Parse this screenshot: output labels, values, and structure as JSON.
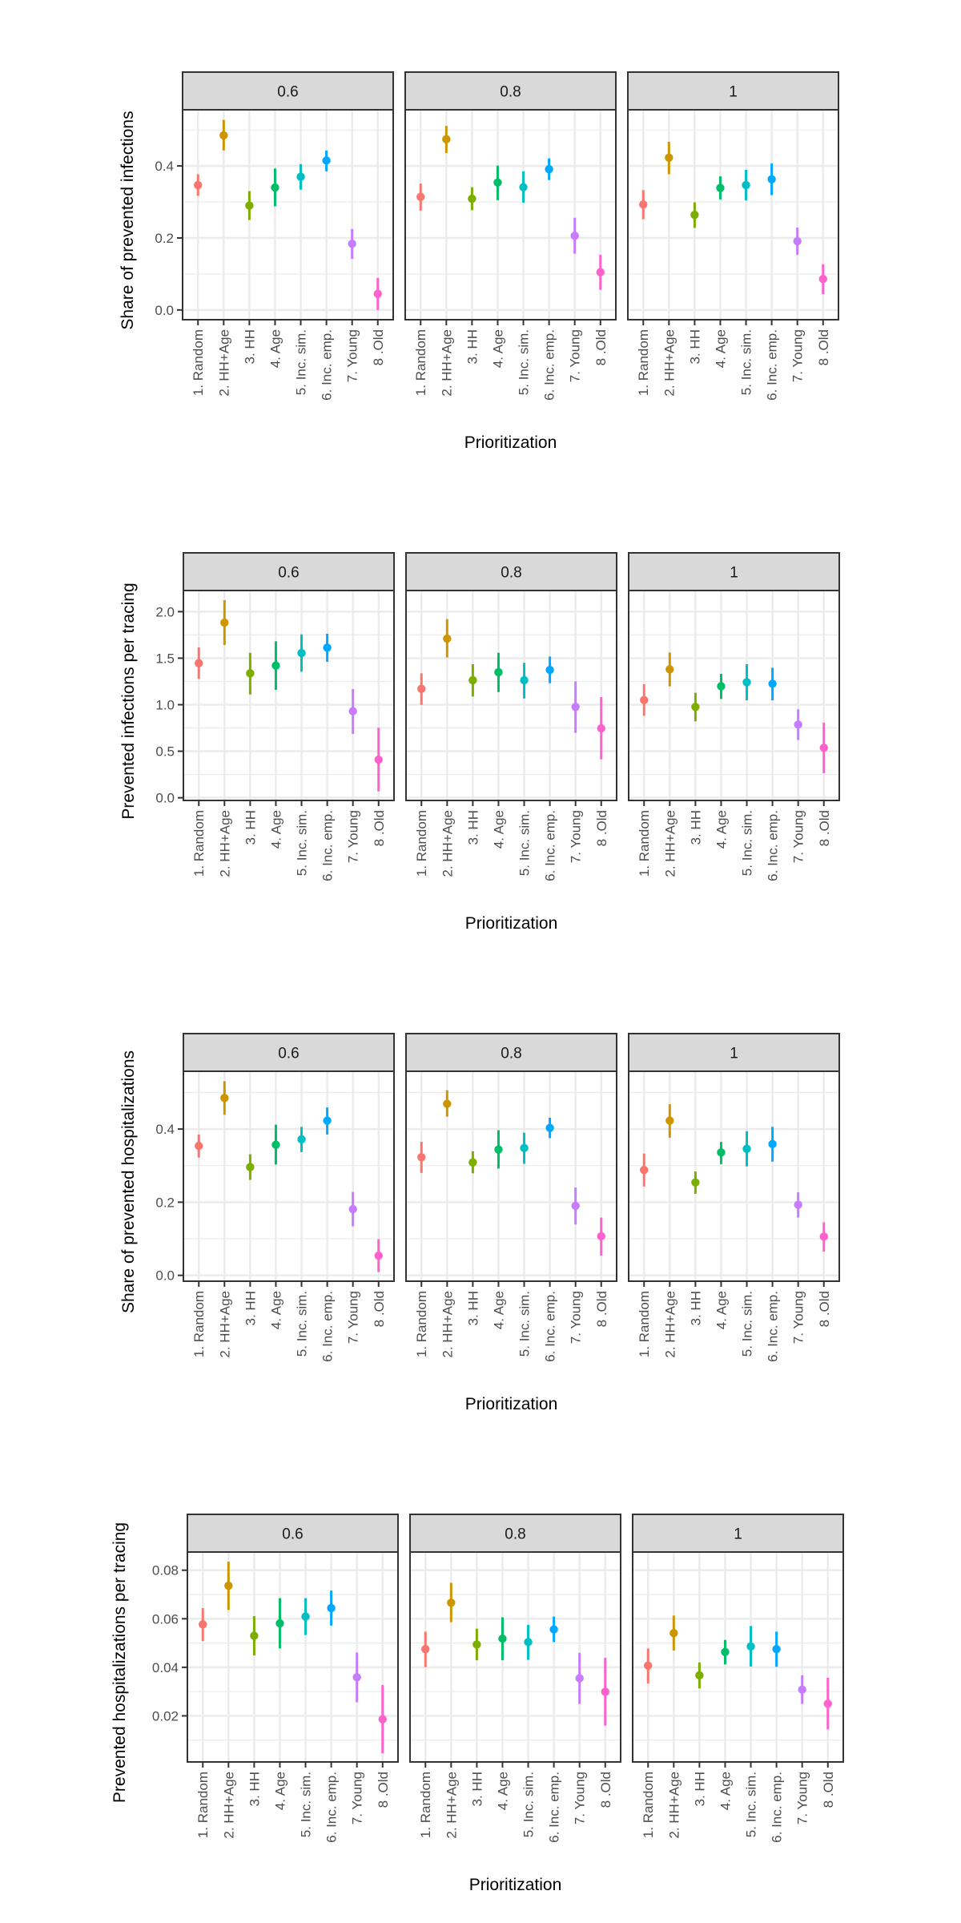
{
  "chart_data": [
    {
      "type": "scatter",
      "subtype": "point-range (faceted)",
      "ylabel": "Share of prevented infections",
      "xlabel": "Prioritization",
      "facets": [
        "0.6",
        "0.8",
        "1"
      ],
      "categories": [
        "1. Random",
        "2. HH+Age",
        "3. HH",
        "4. Age",
        "5. Inc. sim.",
        "6. Inc. emp.",
        "7. Young",
        "8 .Old"
      ],
      "yticks": [
        0.0,
        0.2,
        0.4
      ],
      "ytick_labels": [
        "0.0",
        "0.2",
        "0.4"
      ],
      "ylim": [
        -0.027,
        0.556
      ],
      "grid": true,
      "series": [
        {
          "facet": "0.6",
          "values": [
            0.347,
            0.485,
            0.29,
            0.34,
            0.37,
            0.415,
            0.184,
            0.045
          ],
          "lower": [
            0.317,
            0.443,
            0.25,
            0.288,
            0.334,
            0.385,
            0.142,
            0.0
          ],
          "upper": [
            0.377,
            0.528,
            0.33,
            0.393,
            0.405,
            0.443,
            0.225,
            0.089
          ]
        },
        {
          "facet": "0.8",
          "values": [
            0.314,
            0.474,
            0.309,
            0.354,
            0.341,
            0.391,
            0.206,
            0.105
          ],
          "lower": [
            0.276,
            0.436,
            0.277,
            0.305,
            0.298,
            0.361,
            0.156,
            0.056
          ],
          "upper": [
            0.351,
            0.511,
            0.341,
            0.401,
            0.385,
            0.421,
            0.256,
            0.153
          ]
        },
        {
          "facet": "1",
          "values": [
            0.293,
            0.423,
            0.264,
            0.339,
            0.347,
            0.363,
            0.191,
            0.086
          ],
          "lower": [
            0.252,
            0.377,
            0.228,
            0.307,
            0.304,
            0.319,
            0.153,
            0.044
          ],
          "upper": [
            0.333,
            0.467,
            0.299,
            0.371,
            0.389,
            0.407,
            0.229,
            0.127
          ]
        }
      ]
    },
    {
      "type": "scatter",
      "subtype": "point-range (faceted)",
      "ylabel": "Prevented infections per tracing",
      "xlabel": "Prioritization",
      "facets": [
        "0.6",
        "0.8",
        "1"
      ],
      "categories": [
        "1. Random",
        "2. HH+Age",
        "3. HH",
        "4. Age",
        "5. Inc. sim.",
        "6. Inc. emp.",
        "7. Young",
        "8 .Old"
      ],
      "yticks": [
        0.0,
        0.5,
        1.0,
        1.5,
        2.0
      ],
      "ytick_labels": [
        "0.0",
        "0.5",
        "1.0",
        "1.5",
        "2.0"
      ],
      "ylim": [
        -0.029,
        2.227
      ],
      "grid": true,
      "series": [
        {
          "facet": "0.6",
          "values": [
            1.446,
            1.882,
            1.337,
            1.42,
            1.555,
            1.613,
            0.93,
            0.41
          ],
          "lower": [
            1.277,
            1.641,
            1.11,
            1.159,
            1.354,
            1.461,
            0.686,
            0.069
          ],
          "upper": [
            1.615,
            2.123,
            1.558,
            1.681,
            1.756,
            1.762,
            1.168,
            0.752
          ]
        },
        {
          "facet": "0.8",
          "values": [
            1.171,
            1.71,
            1.263,
            1.349,
            1.263,
            1.374,
            0.976,
            0.746
          ],
          "lower": [
            0.998,
            1.507,
            1.088,
            1.136,
            1.067,
            1.231,
            0.697,
            0.413
          ],
          "upper": [
            1.337,
            1.92,
            1.435,
            1.558,
            1.45,
            1.518,
            1.251,
            1.082
          ]
        },
        {
          "facet": "1",
          "values": [
            1.05,
            1.38,
            0.976,
            1.199,
            1.242,
            1.225,
            0.786,
            0.537
          ],
          "lower": [
            0.881,
            1.197,
            0.821,
            1.062,
            1.047,
            1.047,
            0.62,
            0.264
          ],
          "upper": [
            1.22,
            1.561,
            1.128,
            1.331,
            1.435,
            1.397,
            0.95,
            0.806
          ]
        }
      ]
    },
    {
      "type": "scatter",
      "subtype": "point-range (faceted)",
      "ylabel": "Share of prevented hospitalizations",
      "xlabel": "Prioritization",
      "facets": [
        "0.6",
        "0.8",
        "1"
      ],
      "categories": [
        "1. Random",
        "2. HH+Age",
        "3. HH",
        "4. Age",
        "5. Inc. sim.",
        "6. Inc. emp.",
        "7. Young",
        "8 .Old"
      ],
      "yticks": [
        0.0,
        0.2,
        0.4
      ],
      "ytick_labels": [
        "0.0",
        "0.2",
        "0.4"
      ],
      "ylim": [
        -0.016,
        0.558
      ],
      "grid": true,
      "series": [
        {
          "facet": "0.6",
          "values": [
            0.354,
            0.485,
            0.296,
            0.357,
            0.372,
            0.423,
            0.181,
            0.054
          ],
          "lower": [
            0.322,
            0.439,
            0.261,
            0.303,
            0.337,
            0.385,
            0.134,
            0.009
          ],
          "upper": [
            0.385,
            0.531,
            0.331,
            0.412,
            0.406,
            0.459,
            0.228,
            0.099
          ]
        },
        {
          "facet": "0.8",
          "values": [
            0.323,
            0.469,
            0.309,
            0.344,
            0.348,
            0.403,
            0.19,
            0.107
          ],
          "lower": [
            0.28,
            0.434,
            0.279,
            0.292,
            0.305,
            0.375,
            0.139,
            0.054
          ],
          "upper": [
            0.365,
            0.506,
            0.339,
            0.397,
            0.39,
            0.431,
            0.24,
            0.158
          ]
        },
        {
          "facet": "1",
          "values": [
            0.288,
            0.423,
            0.254,
            0.336,
            0.346,
            0.359,
            0.193,
            0.106
          ],
          "lower": [
            0.243,
            0.376,
            0.223,
            0.304,
            0.298,
            0.311,
            0.158,
            0.065
          ],
          "upper": [
            0.333,
            0.468,
            0.284,
            0.365,
            0.394,
            0.406,
            0.227,
            0.145
          ]
        }
      ]
    },
    {
      "type": "scatter",
      "subtype": "point-range (faceted)",
      "ylabel": "Prevented hospitalizations per tracing",
      "xlabel": "Prioritization",
      "facets": [
        "0.6",
        "0.8",
        "1"
      ],
      "categories": [
        "1. Random",
        "2. HH+Age",
        "3. HH",
        "4. Age",
        "5. Inc. sim.",
        "6. Inc. emp.",
        "7. Young",
        "8 .Old"
      ],
      "yticks": [
        0.02,
        0.04,
        0.06,
        0.08
      ],
      "ytick_labels": [
        "0.02",
        "0.04",
        "0.06",
        "0.08"
      ],
      "ylim": [
        0.001,
        0.0875
      ],
      "grid": true,
      "series": [
        {
          "facet": "0.6",
          "values": [
            0.0577,
            0.0736,
            0.053,
            0.0581,
            0.0609,
            0.0644,
            0.0359,
            0.0186
          ],
          "lower": [
            0.0508,
            0.0636,
            0.0449,
            0.0478,
            0.0533,
            0.0572,
            0.0256,
            0.0045
          ],
          "upper": [
            0.0644,
            0.0835,
            0.0611,
            0.0685,
            0.0685,
            0.0716,
            0.0461,
            0.0327
          ]
        },
        {
          "facet": "0.8",
          "values": [
            0.0475,
            0.0666,
            0.0494,
            0.0518,
            0.0504,
            0.0556,
            0.0355,
            0.0299
          ],
          "lower": [
            0.0401,
            0.0586,
            0.0429,
            0.0429,
            0.0431,
            0.0504,
            0.0249,
            0.016
          ],
          "upper": [
            0.0547,
            0.0748,
            0.0559,
            0.0606,
            0.0575,
            0.0609,
            0.046,
            0.0439
          ]
        },
        {
          "facet": "1",
          "values": [
            0.0407,
            0.0541,
            0.0367,
            0.0463,
            0.0486,
            0.0475,
            0.0308,
            0.025
          ],
          "lower": [
            0.0333,
            0.0469,
            0.0313,
            0.0412,
            0.0403,
            0.0402,
            0.0249,
            0.0144
          ],
          "upper": [
            0.0477,
            0.0613,
            0.042,
            0.0513,
            0.057,
            0.0547,
            0.0367,
            0.0357
          ]
        }
      ]
    }
  ],
  "colors": [
    "#F8766D",
    "#CD9600",
    "#7CAE00",
    "#00BE67",
    "#00BFC4",
    "#00A9FF",
    "#C77CFF",
    "#FF61CC"
  ],
  "strip_fill": "#D9D9D9"
}
